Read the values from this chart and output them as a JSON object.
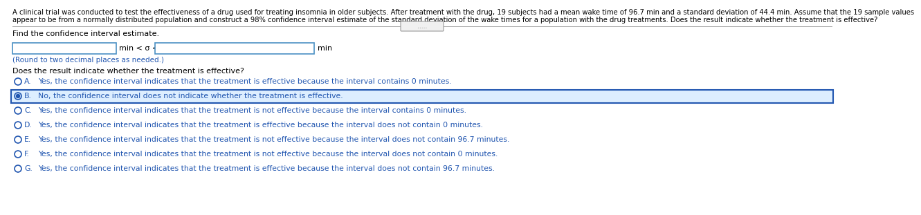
{
  "para_line1": "A clinical trial was conducted to test the effectiveness of a drug used for treating insomnia in older subjects. After treatment with the drug, 19 subjects had a mean wake time of 96.7 min and a standard deviation of 44.4 min. Assume that the 19 sample values",
  "para_line2": "appear to be from a normally distributed population and construct a 98% confidence interval estimate of the standard deviation of the wake times for a population with the drug treatments. Does the result indicate whether the treatment is effective?",
  "find_label": "Find the confidence interval estimate.",
  "input_label": "min < σ <",
  "unit_label": "min",
  "round_note": "(Round to two decimal places as needed.)",
  "question2": "Does the result indicate whether the treatment is effective?",
  "options": [
    {
      "letter": "A.",
      "text": "Yes, the confidence interval indicates that the treatment is effective because the interval contains 0 minutes."
    },
    {
      "letter": "B.",
      "text": "No, the confidence interval does not indicate whether the treatment is effective.",
      "selected": true
    },
    {
      "letter": "C.",
      "text": "Yes, the confidence interval indicates that the treatment is not effective because the interval contains 0 minutes."
    },
    {
      "letter": "D.",
      "text": "Yes, the confidence interval indicates that the treatment is effective because the interval does not contain 0 minutes."
    },
    {
      "letter": "E.",
      "text": "Yes, the confidence interval indicates that the treatment is not effective because the interval does not contain 96.7 minutes."
    },
    {
      "letter": "F.",
      "text": "Yes, the confidence interval indicates that the treatment is not effective because the interval does not contain 0 minutes."
    },
    {
      "letter": "G.",
      "text": "Yes, the confidence interval indicates that the treatment is effective because the interval does not contain 96.7 minutes."
    }
  ],
  "bg_color": "#ffffff",
  "text_color": "#000000",
  "blue_color": "#2156b0",
  "box_border_color": "#4a90c4",
  "selected_bg": "#ddeeff",
  "selected_border": "#2156b0",
  "divider_color": "#aaaaaa",
  "dots_color": "#666666",
  "font_size_para": 7.2,
  "font_size_main": 8.0,
  "font_size_option": 7.8
}
